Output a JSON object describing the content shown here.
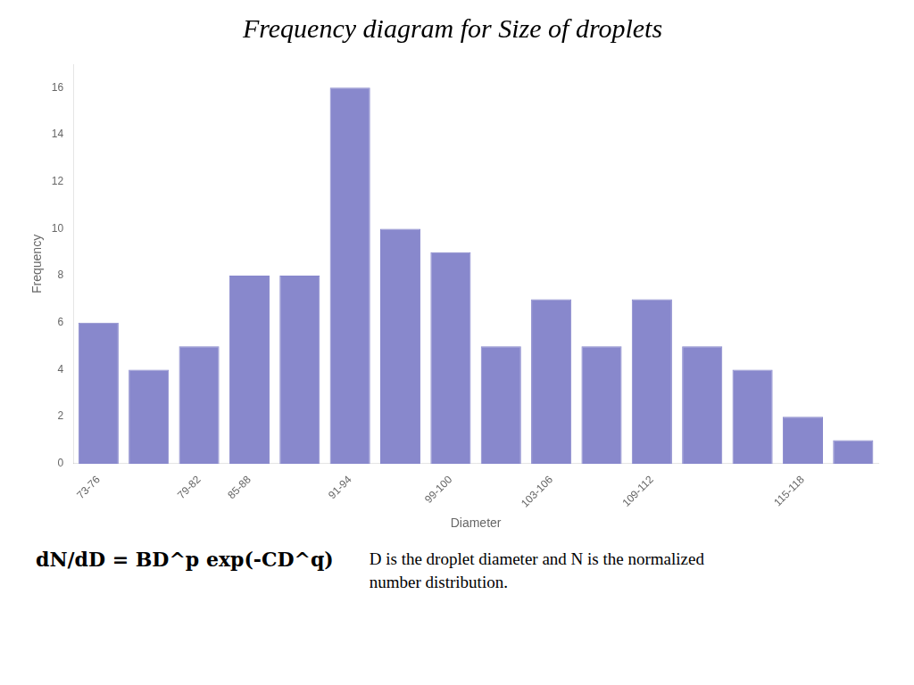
{
  "chart_data": {
    "type": "bar",
    "title": "Frequency diagram for Size of droplets",
    "categories": [
      "73-76",
      null,
      "79-82",
      "85-88",
      null,
      "91-94",
      null,
      "99-100",
      null,
      "103-106",
      null,
      "109-112",
      null,
      null,
      "115-118",
      null
    ],
    "values": [
      6,
      4,
      5,
      8,
      8,
      16,
      10,
      9,
      5,
      7,
      5,
      7,
      5,
      4,
      2,
      1
    ],
    "color": "#8888cc",
    "xlabel": "Diameter",
    "ylabel": "Frequency",
    "ylim": [
      0,
      17
    ],
    "yticks": [
      0,
      2,
      4,
      6,
      8,
      10,
      12,
      14,
      16
    ],
    "grid": false,
    "annotations": [
      "dN/dD = BD^p exp(-CD^q)",
      "D is the droplet diameter and N is the normalized number distribution."
    ]
  }
}
